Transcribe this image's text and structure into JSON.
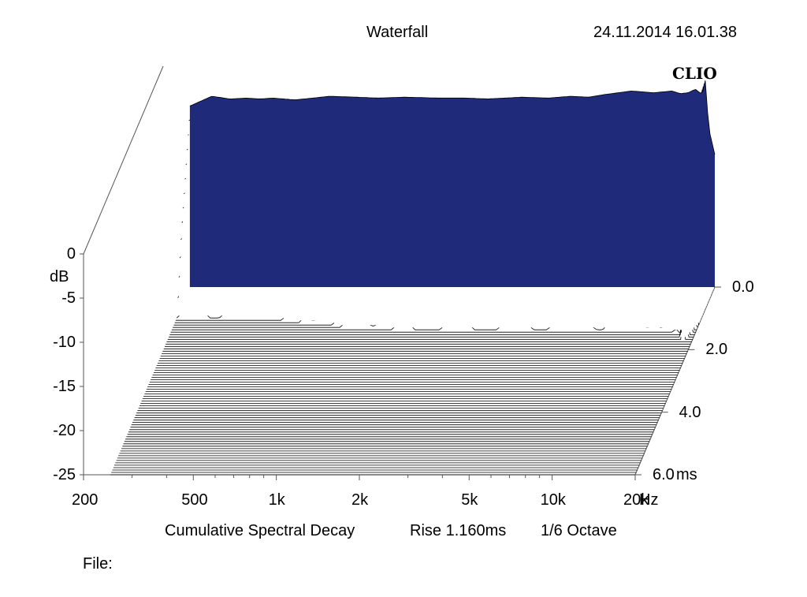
{
  "header": {
    "title": "Waterfall",
    "timestamp": "24.11.2014 16.01.38",
    "logo_text": "CLIO"
  },
  "footer": {
    "caption_label": "Cumulative Spectral Decay",
    "rise_label": "Rise 1.160ms",
    "octave_label": "1/6 Octave",
    "file_label": "File:"
  },
  "colors": {
    "trace": "#000000",
    "fill": "#1f2a7a",
    "background": "#ffffff"
  },
  "chart_data": {
    "type": "waterfall",
    "title": "Waterfall",
    "x_unit_label": "Hz",
    "y_unit_label": "dB",
    "z_unit_label": "ms",
    "x_ticks": [
      "200",
      "500",
      "1k",
      "2k",
      "5k",
      "10k",
      "20k"
    ],
    "x_tick_values": [
      200,
      500,
      1000,
      2000,
      5000,
      10000,
      20000
    ],
    "xlim": [
      200,
      20000
    ],
    "x_scale": "log",
    "y_ticks": [
      "0",
      "-5",
      "-10",
      "-15",
      "-20",
      "-25"
    ],
    "y_tick_values": [
      0,
      -5,
      -10,
      -15,
      -20,
      -25
    ],
    "ylim": [
      -25,
      0
    ],
    "z_ticks": [
      "0.0",
      "2.0",
      "4.0",
      "6.0"
    ],
    "z_tick_values": [
      0.0,
      2.0,
      4.0,
      6.0
    ],
    "zlim": [
      0,
      6
    ],
    "slice_count": 80,
    "initial_response_db": {
      "freq_hz": [
        250,
        300,
        350,
        400,
        450,
        500,
        600,
        700,
        800,
        1000,
        1200,
        1500,
        2000,
        2500,
        3000,
        4000,
        5000,
        6000,
        7000,
        8000,
        10000,
        12000,
        14000,
        15000,
        16000,
        17000,
        18000,
        18500,
        19000,
        20000
      ],
      "level_db": [
        -4.5,
        -3.4,
        -3.7,
        -3.6,
        -3.7,
        -3.6,
        -3.8,
        -3.6,
        -3.4,
        -3.5,
        -3.6,
        -3.5,
        -3.6,
        -3.6,
        -3.7,
        -3.5,
        -3.6,
        -3.4,
        -3.5,
        -3.2,
        -2.8,
        -3.0,
        -2.8,
        -3.1,
        -3.0,
        -2.6,
        -3.2,
        -1.5,
        -7.0,
        -10.0
      ]
    }
  }
}
